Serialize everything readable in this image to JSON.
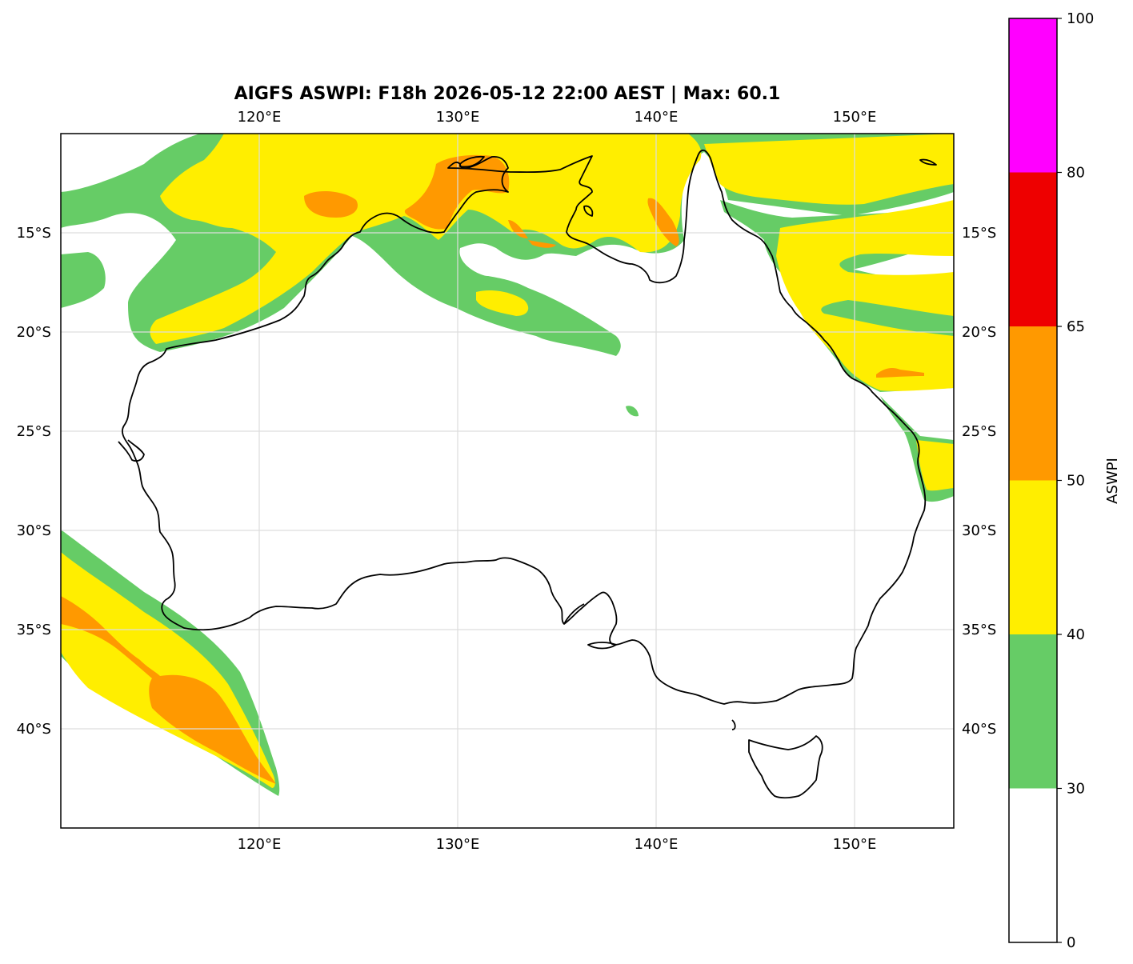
{
  "title": "AIGFS ASWPI: F18h 2026-05-12 22:00 AEST | Max: 60.1",
  "colors": {
    "land_outline": "#000000",
    "grid": "#dddddd",
    "level_30_40": "#66cc66",
    "level_40_50": "#ffee00",
    "level_50_65": "#ff9900",
    "level_65_80": "#ee0000",
    "level_80_100": "#ff00ff"
  },
  "map": {
    "projection": "PlateCarree",
    "extent": {
      "lon_min": 110,
      "lon_max": 155,
      "lat_min": -45,
      "lat_max": -10
    },
    "lon_ticks": [
      120,
      130,
      140,
      150
    ],
    "lon_tick_labels": [
      "120°E",
      "130°E",
      "140°E",
      "150°E"
    ],
    "lat_ticks": [
      -15,
      -20,
      -25,
      -30,
      -35,
      -40
    ],
    "lat_tick_labels": [
      "15°S",
      "20°S",
      "25°S",
      "30°S",
      "35°S",
      "40°S"
    ],
    "gridlines": true,
    "max_value": 60.1
  },
  "colorbar": {
    "label": "ASWPI",
    "levels": [
      0,
      30,
      40,
      50,
      65,
      80,
      100
    ],
    "tick_labels": [
      "0",
      "30",
      "40",
      "50",
      "65",
      "80",
      "100"
    ],
    "fill_colors": [
      "#ffffff",
      "#66cc66",
      "#ffee00",
      "#ff9900",
      "#ee0000",
      "#ff00ff"
    ]
  }
}
